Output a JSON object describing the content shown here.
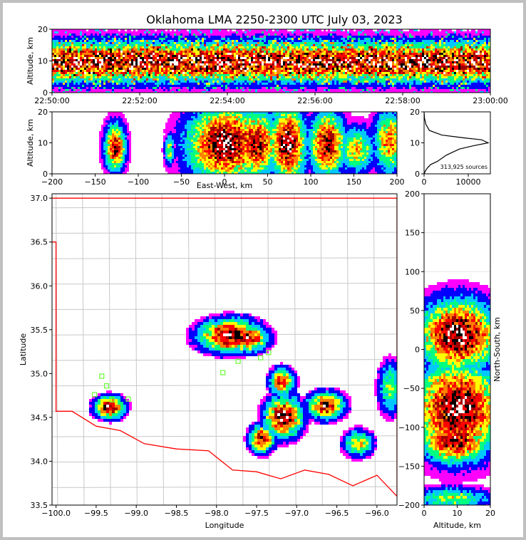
{
  "title": "Oklahoma LMA 2250-2300 UTC July 03, 2023",
  "colors": {
    "border": "#ff0000",
    "county": "#c8c8c8",
    "station": "#66ff33",
    "density_scale": [
      "#ff00ff",
      "#0000ff",
      "#00c8ff",
      "#00ff80",
      "#ffff00",
      "#ff8000",
      "#ff0000",
      "#a00000",
      "#000000",
      "#ffffff"
    ]
  },
  "chart_data": [
    {
      "id": "time-height",
      "type": "heatmap",
      "title": "",
      "xlabel": "",
      "ylabel": "Altitude, km",
      "xlim": [
        "22:50:00",
        "23:00:00"
      ],
      "ylim": [
        0,
        20
      ],
      "xticks": [
        "22:50:00",
        "22:52:00",
        "22:54:00",
        "22:56:00",
        "22:58:00",
        "23:00:00"
      ],
      "yticks": [
        "0",
        "10",
        "20"
      ],
      "peak_altitude_km": 10
    },
    {
      "id": "ew-height",
      "type": "heatmap",
      "xlabel": "East-West, km",
      "ylabel": "Altitude, km",
      "xlim": [
        -200,
        200
      ],
      "ylim": [
        0,
        20
      ],
      "xticks": [
        "−200",
        "−150",
        "−100",
        "−50",
        "0",
        "50",
        "100",
        "150",
        "200"
      ],
      "yticks": [
        "0",
        "10",
        "20"
      ],
      "clusters": [
        {
          "x": -128,
          "y": 9,
          "w": 8,
          "h": 10,
          "i": 0.9
        },
        {
          "x": -65,
          "y": 8,
          "w": 4,
          "h": 7,
          "i": 0.5
        },
        {
          "x": 0,
          "y": 10,
          "w": 30,
          "h": 16,
          "i": 1.0
        },
        {
          "x": 35,
          "y": 10,
          "w": 18,
          "h": 14,
          "i": 0.9
        },
        {
          "x": 72,
          "y": 10,
          "w": 14,
          "h": 16,
          "i": 1.0
        },
        {
          "x": 118,
          "y": 10,
          "w": 14,
          "h": 14,
          "i": 0.9
        },
        {
          "x": 152,
          "y": 8,
          "w": 14,
          "h": 10,
          "i": 0.6
        },
        {
          "x": 190,
          "y": 11,
          "w": 12,
          "h": 14,
          "i": 0.7
        }
      ]
    },
    {
      "id": "altitude-histogram",
      "type": "line",
      "xlabel": "",
      "ylabel": "",
      "xlim": [
        0,
        15000
      ],
      "ylim": [
        0,
        20
      ],
      "xticks": [
        "0",
        "10000"
      ],
      "yticks": [
        "0",
        "10",
        "20"
      ],
      "annotation": "313,925 sources",
      "x": [
        0,
        300,
        800,
        1500,
        3000,
        5000,
        8000,
        11000,
        14500,
        13000,
        9000,
        4000,
        1200,
        400,
        100,
        0
      ],
      "y": [
        0,
        1,
        2,
        3,
        4,
        6,
        8,
        9,
        10,
        11,
        11.6,
        12.5,
        14,
        16,
        18,
        20
      ]
    },
    {
      "id": "plan-view",
      "type": "heatmap",
      "xlabel": "Longitude",
      "ylabel": "Latitude",
      "xlim": [
        -100.05,
        -95.75
      ],
      "ylim": [
        33.5,
        37.05
      ],
      "xticks": [
        "−100.0",
        "−99.5",
        "−99.0",
        "−98.5",
        "−98.0",
        "−97.5",
        "−97.0",
        "−96.5",
        "−96.0"
      ],
      "yticks": [
        "33.5",
        "34.0",
        "34.5",
        "35.0",
        "35.5",
        "36.0",
        "36.5",
        "37.0"
      ],
      "clusters": [
        {
          "lon": -97.85,
          "lat": 35.45,
          "w": 0.25,
          "h": 0.12,
          "i": 1.0
        },
        {
          "lon": -97.65,
          "lat": 35.42,
          "w": 0.18,
          "h": 0.1,
          "i": 0.9
        },
        {
          "lon": -99.35,
          "lat": 34.63,
          "w": 0.12,
          "h": 0.08,
          "i": 1.0
        },
        {
          "lon": -97.18,
          "lat": 34.52,
          "w": 0.15,
          "h": 0.15,
          "i": 1.0
        },
        {
          "lon": -97.45,
          "lat": 34.27,
          "w": 0.1,
          "h": 0.1,
          "i": 0.9
        },
        {
          "lon": -96.65,
          "lat": 34.65,
          "w": 0.15,
          "h": 0.1,
          "i": 0.9
        },
        {
          "lon": -97.2,
          "lat": 34.92,
          "w": 0.1,
          "h": 0.1,
          "i": 0.8
        },
        {
          "lon": -96.25,
          "lat": 34.22,
          "w": 0.12,
          "h": 0.1,
          "i": 0.6
        },
        {
          "lon": -95.85,
          "lat": 34.85,
          "w": 0.1,
          "h": 0.2,
          "i": 0.5
        }
      ],
      "stations": [
        {
          "lon": -99.43,
          "lat": 34.97
        },
        {
          "lon": -99.37,
          "lat": 34.86
        },
        {
          "lon": -99.52,
          "lat": 34.76
        },
        {
          "lon": -99.1,
          "lat": 34.71
        },
        {
          "lon": -97.92,
          "lat": 35.01
        },
        {
          "lon": -97.73,
          "lat": 35.14
        },
        {
          "lon": -97.35,
          "lat": 35.24
        },
        {
          "lon": -97.45,
          "lat": 35.18
        },
        {
          "lon": -99.3,
          "lat": 34.7
        }
      ]
    },
    {
      "id": "ns-height",
      "type": "heatmap",
      "xlabel": "Altitude, km",
      "ylabel": "North-South, km",
      "xlim": [
        0,
        20
      ],
      "ylim": [
        -200,
        200
      ],
      "xticks": [
        "0",
        "10",
        "20"
      ],
      "yticks": [
        "−200",
        "−150",
        "−100",
        "−50",
        "0",
        "50",
        "100",
        "150",
        "200"
      ],
      "clusters": [
        {
          "x": 10,
          "y": 20,
          "w": 16,
          "h": 30,
          "i": 1.0
        },
        {
          "x": 10,
          "y": -75,
          "w": 18,
          "h": 40,
          "i": 1.0
        },
        {
          "x": 9,
          "y": -115,
          "w": 14,
          "h": 20,
          "i": 0.9
        },
        {
          "x": 8,
          "y": -45,
          "w": 16,
          "h": 20,
          "i": 0.7
        },
        {
          "x": 8,
          "y": -190,
          "w": 16,
          "h": 10,
          "i": 0.5
        }
      ]
    }
  ]
}
